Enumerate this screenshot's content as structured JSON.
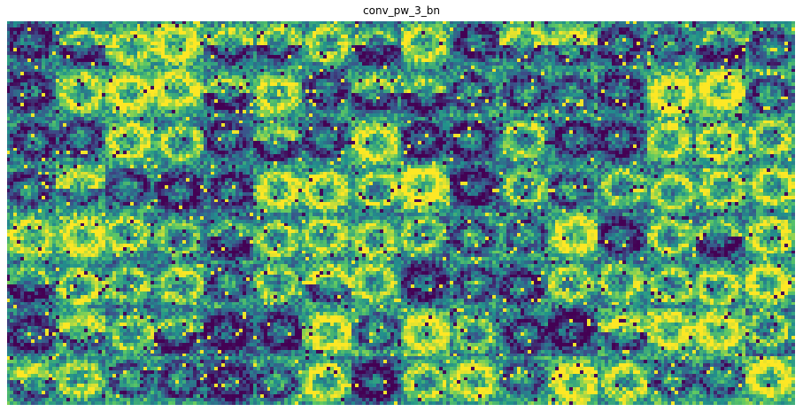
{
  "figure": {
    "title": "conv_pw_3_bn"
  },
  "chart_data": {
    "type": "heatmap",
    "title": "conv_pw_3_bn",
    "grid": false,
    "axes_visible": false,
    "colormap": "viridis",
    "grid_layout": {
      "columns": 16,
      "rows": 8,
      "cells_total": 128
    },
    "tile_resolution": 14,
    "palette": [
      "#440154",
      "#3b528b",
      "#21918c",
      "#5ec962",
      "#fde725"
    ]
  }
}
